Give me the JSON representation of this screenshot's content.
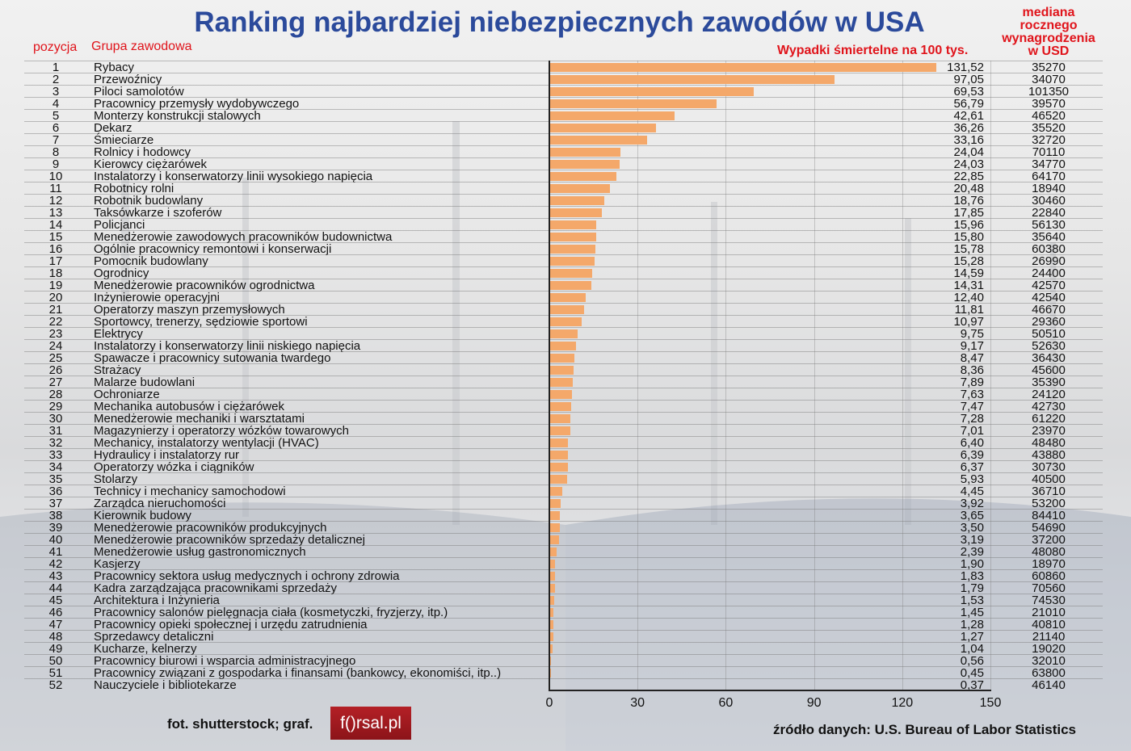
{
  "title": "Ranking najbardziej niebezpiecznych zawodów w USA",
  "headers": {
    "position": "pozycja",
    "group": "Grupa zawodowa",
    "fatalities": "Wypadki śmiertelne na 100 tys.",
    "salary": [
      "mediana",
      "rocznego",
      "wynagrodzenia",
      "w USD"
    ]
  },
  "footer": {
    "credit": "fot. shutterstock; graf.",
    "logo": "f()rsal.pl",
    "source": "źródło danych: U.S. Bureau of Labor Statistics"
  },
  "colors": {
    "bar": "#f4a86a",
    "title": "#2b4a9b",
    "header": "#e0141b"
  },
  "chart_data": {
    "type": "bar",
    "orientation": "horizontal",
    "title": "Ranking najbardziej niebezpiecznych zawodów w USA",
    "xlabel": "Wypadki śmiertelne na 100 tys.",
    "xlim": [
      0,
      150
    ],
    "xticks": [
      "0",
      "30",
      "60",
      "90",
      "120",
      "150"
    ],
    "rows": [
      {
        "pos": "1",
        "name": "Rybacy",
        "value": "131,52",
        "salary": "35270"
      },
      {
        "pos": "2",
        "name": "Przewoźnicy",
        "value": "97,05",
        "salary": "34070"
      },
      {
        "pos": "3",
        "name": "Piloci samolotów",
        "value": "69,53",
        "salary": "101350"
      },
      {
        "pos": "4",
        "name": "Pracownicy przemysły wydobywczego",
        "value": "56,79",
        "salary": "39570"
      },
      {
        "pos": "5",
        "name": "Monterzy konstrukcji stalowych",
        "value": "42,61",
        "salary": "46520"
      },
      {
        "pos": "6",
        "name": "Dekarz",
        "value": "36,26",
        "salary": "35520"
      },
      {
        "pos": "7",
        "name": "Śmieciarze",
        "value": "33,16",
        "salary": "32720"
      },
      {
        "pos": "8",
        "name": "Rolnicy i hodowcy",
        "value": "24,04",
        "salary": "70110"
      },
      {
        "pos": "9",
        "name": "Kierowcy ciężarówek",
        "value": "24,03",
        "salary": "34770"
      },
      {
        "pos": "10",
        "name": "Instalatorzy i konserwatorzy linii wysokiego napięcia",
        "value": "22,85",
        "salary": "64170"
      },
      {
        "pos": "11",
        "name": "Robotnicy rolni",
        "value": "20,48",
        "salary": "18940"
      },
      {
        "pos": "12",
        "name": "Robotnik budowlany",
        "value": "18,76",
        "salary": "30460"
      },
      {
        "pos": "13",
        "name": "Taksówkarze i szoferów",
        "value": "17,85",
        "salary": "22840"
      },
      {
        "pos": "14",
        "name": "Policjanci",
        "value": "15,96",
        "salary": "56130"
      },
      {
        "pos": "15",
        "name": "Menedżerowie zawodowych pracowników budownictwa",
        "value": "15,80",
        "salary": "35640"
      },
      {
        "pos": "16",
        "name": "Ogólnie pracownicy remontowi i konserwacji",
        "value": "15,78",
        "salary": "60380"
      },
      {
        "pos": "17",
        "name": "Pomocnik budowlany",
        "value": "15,28",
        "salary": "26990"
      },
      {
        "pos": "18",
        "name": "Ogrodnicy",
        "value": "14,59",
        "salary": "24400"
      },
      {
        "pos": "19",
        "name": "Menedżerowie pracowników ogrodnictwa",
        "value": "14,31",
        "salary": "42570"
      },
      {
        "pos": "20",
        "name": "Inżynierowie operacyjni",
        "value": "12,40",
        "salary": "42540"
      },
      {
        "pos": "21",
        "name": "Operatorzy maszyn przemysłowych",
        "value": "11,81",
        "salary": "46670"
      },
      {
        "pos": "22",
        "name": "Sportowcy, trenerzy, sędziowie sportowi",
        "value": "10,97",
        "salary": "29360"
      },
      {
        "pos": "23",
        "name": "Elektrycy",
        "value": "9,75",
        "salary": "50510"
      },
      {
        "pos": "24",
        "name": "Instalatorzy i konserwatorzy linii niskiego napięcia",
        "value": "9,17",
        "salary": "52630"
      },
      {
        "pos": "25",
        "name": "Spawacze i pracownicy sutowania twardego",
        "value": "8,47",
        "salary": "36430"
      },
      {
        "pos": "26",
        "name": "Strażacy",
        "value": "8,36",
        "salary": "45600"
      },
      {
        "pos": "27",
        "name": "Malarze budowlani",
        "value": "7,89",
        "salary": "35390"
      },
      {
        "pos": "28",
        "name": "Ochroniarze",
        "value": "7,63",
        "salary": "24120"
      },
      {
        "pos": "29",
        "name": "Mechanika autobusów i ciężarówek",
        "value": "7,47",
        "salary": "42730"
      },
      {
        "pos": "30",
        "name": "Menedżerowie mechaniki i warsztatami",
        "value": "7,28",
        "salary": "61220"
      },
      {
        "pos": "31",
        "name": "Magazynierzy i operatorzy wózków towarowych",
        "value": "7,01",
        "salary": "23970"
      },
      {
        "pos": "32",
        "name": "Mechanicy, instalatorzy wentylacji (HVAC)",
        "value": "6,40",
        "salary": "48480"
      },
      {
        "pos": "33",
        "name": "Hydraulicy i instalatorzy rur",
        "value": "6,39",
        "salary": "43880"
      },
      {
        "pos": "34",
        "name": "Operatorzy wózka i ciągników",
        "value": "6,37",
        "salary": "30730"
      },
      {
        "pos": "35",
        "name": "Stolarzy",
        "value": "5,93",
        "salary": "40500"
      },
      {
        "pos": "36",
        "name": "Technicy i mechanicy samochodowi",
        "value": "4,45",
        "salary": "36710"
      },
      {
        "pos": "37",
        "name": "Zarządca nieruchomości",
        "value": "3,92",
        "salary": "53200"
      },
      {
        "pos": "38",
        "name": "Kierownik budowy",
        "value": "3,65",
        "salary": "84410"
      },
      {
        "pos": "39",
        "name": "Menedżerowie pracowników produkcyjnych",
        "value": "3,50",
        "salary": "54690"
      },
      {
        "pos": "40",
        "name": "Menedżerowie pracowników sprzedaży detalicznej",
        "value": "3,19",
        "salary": "37200"
      },
      {
        "pos": "41",
        "name": "Menedżerowie usług gastronomicznych",
        "value": "2,39",
        "salary": "48080"
      },
      {
        "pos": "42",
        "name": "Kasjerzy",
        "value": "1,90",
        "salary": "18970"
      },
      {
        "pos": "43",
        "name": "Pracownicy sektora usług medycznych i ochrony zdrowia",
        "value": "1,83",
        "salary": "60860"
      },
      {
        "pos": "44",
        "name": "Kadra zarządzająca pracownikami sprzedaży",
        "value": "1,79",
        "salary": "70560"
      },
      {
        "pos": "45",
        "name": "Architektura i Inżynieria",
        "value": "1,53",
        "salary": "74530"
      },
      {
        "pos": "46",
        "name": "Pracownicy salonów pielęgnacja ciała (kosmetyczki, fryzjerzy, itp.)",
        "value": "1,45",
        "salary": "21010"
      },
      {
        "pos": "47",
        "name": "Pracownicy opieki społecznej i urzędu zatrudnienia",
        "value": "1,28",
        "salary": "40810"
      },
      {
        "pos": "48",
        "name": "Sprzedawcy detaliczni",
        "value": "1,27",
        "salary": "21140"
      },
      {
        "pos": "49",
        "name": "Kucharze, kelnerzy",
        "value": "1,04",
        "salary": "19020"
      },
      {
        "pos": "50",
        "name": "Pracownicy biurowi i wsparcia administracyjnego",
        "value": "0,56",
        "salary": "32010"
      },
      {
        "pos": "51",
        "name": "Pracownicy związani z gospodarka i finansami (bankowcy, ekonomiści, itp..)",
        "value": "0,45",
        "salary": "63800"
      },
      {
        "pos": "52",
        "name": "Nauczyciele i bibliotekarze",
        "value": "0,37",
        "salary": "46140"
      }
    ]
  }
}
